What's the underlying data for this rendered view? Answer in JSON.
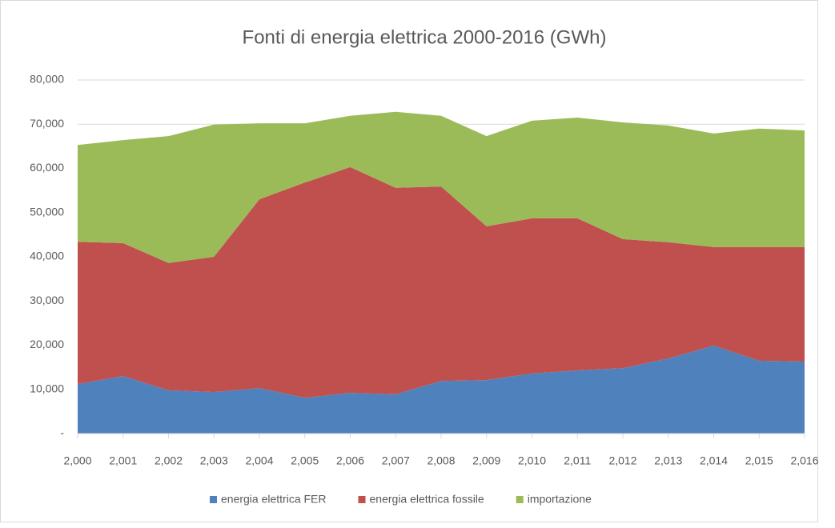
{
  "chart_data": {
    "type": "stacked_area",
    "title": "Fonti di energia elettrica 2000-2016 (GWh)",
    "categories": [
      "2,000",
      "2,001",
      "2,002",
      "2,003",
      "2,004",
      "2,005",
      "2,006",
      "2,007",
      "2,008",
      "2,009",
      "2,010",
      "2,011",
      "2,012",
      "2,013",
      "2,014",
      "2,015",
      "2,016"
    ],
    "series": [
      {
        "name": "energia elettrica FER",
        "color": "#4f81bd",
        "values": [
          11200,
          13000,
          9800,
          9400,
          10300,
          8100,
          9200,
          8900,
          11900,
          12100,
          13600,
          14300,
          14800,
          17000,
          19900,
          16500,
          16300
        ]
      },
      {
        "name": "energia elettrica fossile",
        "color": "#c0504d",
        "values": [
          32200,
          30100,
          28800,
          30600,
          42700,
          48700,
          51100,
          46700,
          44000,
          34800,
          35100,
          34400,
          29200,
          26300,
          22300,
          25700,
          25900
        ]
      },
      {
        "name": "importazione",
        "color": "#9bbb59",
        "values": [
          21900,
          23300,
          28700,
          29900,
          17200,
          13400,
          11600,
          17200,
          16000,
          20400,
          22100,
          22800,
          26400,
          26400,
          25700,
          26800,
          26400
        ]
      }
    ],
    "ylim": [
      0,
      80000
    ],
    "yticks": [
      {
        "value": 0,
        "label": "-"
      },
      {
        "value": 10000,
        "label": "10,000"
      },
      {
        "value": 20000,
        "label": "20,000"
      },
      {
        "value": 30000,
        "label": "30,000"
      },
      {
        "value": 40000,
        "label": "40,000"
      },
      {
        "value": 50000,
        "label": "50,000"
      },
      {
        "value": 60000,
        "label": "60,000"
      },
      {
        "value": 70000,
        "label": "70,000"
      },
      {
        "value": 80000,
        "label": "80,000"
      }
    ],
    "grid": true,
    "legend": "bottom"
  }
}
